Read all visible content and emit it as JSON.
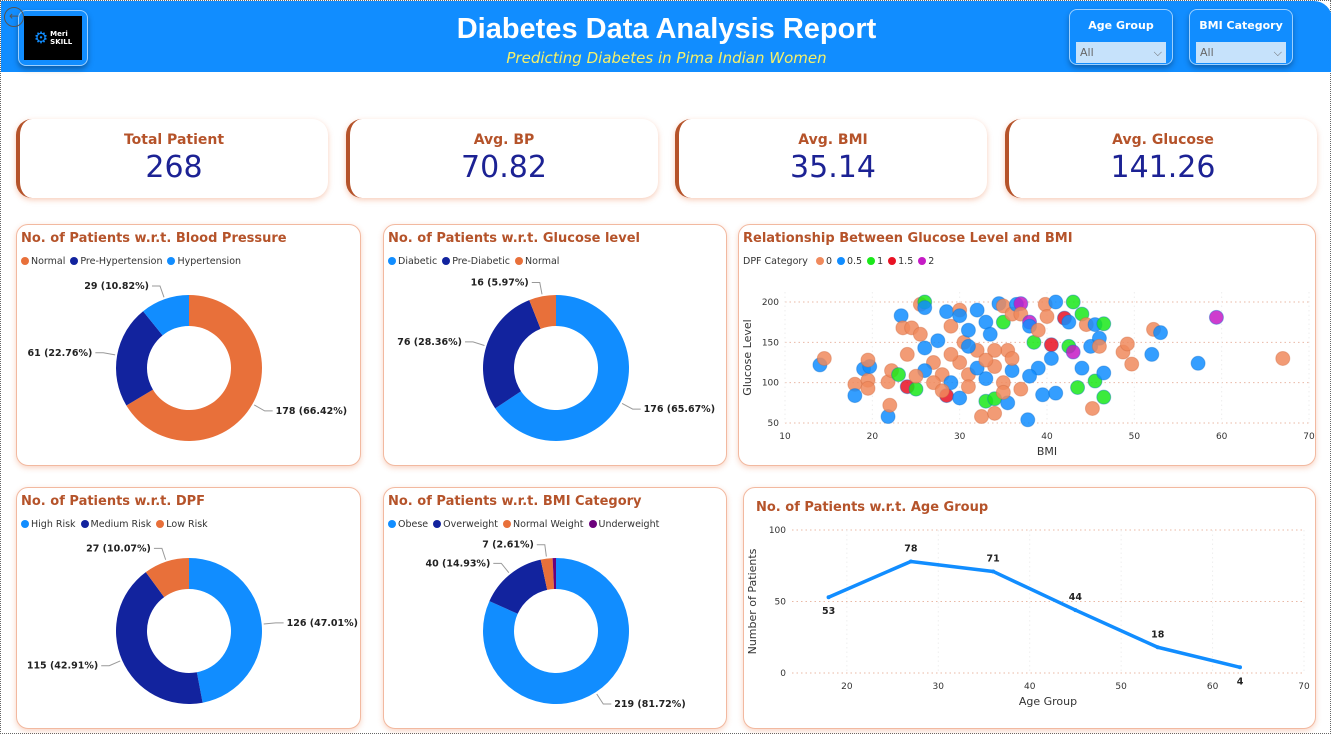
{
  "header": {
    "title": "Diabetes Data Analysis Report",
    "subtitle": "Predicting Diabetes in Pima Indian Women",
    "logo_text": "Meri SKILL",
    "back_icon": "back-arrow-icon"
  },
  "slicers": [
    {
      "label": "Age Group",
      "value": "All"
    },
    {
      "label": "BMI Category",
      "value": "All"
    }
  ],
  "kpis": [
    {
      "label": "Total Patient",
      "value": "268"
    },
    {
      "label": "Avg. BP",
      "value": "70.82"
    },
    {
      "label": "Avg. BMI",
      "value": "35.14"
    },
    {
      "label": "Avg. Glucose",
      "value": "141.26"
    }
  ],
  "colors": {
    "orange": "#E8703A",
    "navy": "#12239E",
    "blue": "#118DFF",
    "purple": "#6B007B",
    "green": "#1AE81A",
    "red": "#E81123",
    "magenta": "#C51BC5",
    "title": "#B5532A",
    "kpi_value": "#1C2294",
    "header": "#118DFF"
  },
  "chart_data": [
    {
      "id": "bp",
      "type": "pie",
      "donut": true,
      "title": "No. of Patients w.r.t. Blood Pressure",
      "categories": [
        "Normal",
        "Pre-Hypertension",
        "Hypertension"
      ],
      "values": [
        178,
        61,
        29
      ],
      "labels": [
        "178 (66.42%)",
        "61 (22.76%)",
        "29 (10.82%)"
      ],
      "colors": [
        "#E8703A",
        "#12239E",
        "#118DFF"
      ],
      "legend": "top-left"
    },
    {
      "id": "glucose",
      "type": "pie",
      "donut": true,
      "title": "No. of Patients w.r.t. Glucose level",
      "categories": [
        "Diabetic",
        "Pre-Diabetic",
        "Normal"
      ],
      "values": [
        176,
        76,
        16
      ],
      "labels": [
        "176 (65.67%)",
        "76 (28.36%)",
        "16 (5.97%)"
      ],
      "colors": [
        "#118DFF",
        "#12239E",
        "#E8703A"
      ],
      "legend": "top-left"
    },
    {
      "id": "dpf",
      "type": "pie",
      "donut": true,
      "title": "No. of Patients w.r.t. DPF",
      "categories": [
        "High Risk",
        "Medium Risk",
        "Low Risk"
      ],
      "values": [
        126,
        115,
        27
      ],
      "labels": [
        "126 (47.01%)",
        "115 (42.91%)",
        "27 (10.07%)"
      ],
      "colors": [
        "#118DFF",
        "#12239E",
        "#E8703A"
      ],
      "legend": "top-left"
    },
    {
      "id": "bmi",
      "type": "pie",
      "donut": true,
      "title": "No. of Patients w.r.t. BMI Category",
      "categories": [
        "Obese",
        "Overweight",
        "Normal Weight",
        "Underweight"
      ],
      "values": [
        219,
        40,
        7,
        2
      ],
      "labels": [
        "219 (81.72%)",
        "40 (14.93%)",
        "7 (2.61%)",
        ""
      ],
      "colors": [
        "#118DFF",
        "#12239E",
        "#E8703A",
        "#6B007B"
      ],
      "legend": "top-left"
    },
    {
      "id": "scatter",
      "type": "scatter",
      "title": "Relationship Between Glucose Level and BMI",
      "xlabel": "BMI",
      "ylabel": "Glucose Level",
      "xlim": [
        10,
        70
      ],
      "ylim": [
        50,
        200
      ],
      "xticks": [
        10,
        20,
        30,
        40,
        50,
        60,
        70
      ],
      "yticks": [
        50,
        100,
        150,
        200
      ],
      "legend_title": "DPF Category",
      "legend": "top-left",
      "grid": true,
      "categories": [
        "0",
        "0.5",
        "1",
        "1.5",
        "2"
      ],
      "colors": [
        "#F08A5D",
        "#118DFF",
        "#1AE81A",
        "#E81123",
        "#C51BC5"
      ],
      "points": [
        [
          14,
          122,
          0.5
        ],
        [
          14.5,
          130,
          0
        ],
        [
          18,
          98,
          0
        ],
        [
          18,
          84,
          0.5
        ],
        [
          19,
          117,
          0.5
        ],
        [
          19.5,
          103,
          0
        ],
        [
          19.5,
          93,
          0
        ],
        [
          19.7,
          120,
          0.5
        ],
        [
          19.5,
          128,
          0
        ],
        [
          21.8,
          101,
          0
        ],
        [
          21.8,
          58,
          0.5
        ],
        [
          22,
          72,
          0
        ],
        [
          22.2,
          115,
          0
        ],
        [
          23,
          110,
          1
        ],
        [
          23.3,
          183,
          0.5
        ],
        [
          23.5,
          168,
          0
        ],
        [
          24.5,
          168,
          0
        ],
        [
          24,
          135,
          0
        ],
        [
          24,
          95,
          1.5
        ],
        [
          25,
          92,
          1
        ],
        [
          25.5,
          197,
          0
        ],
        [
          26,
          200,
          1
        ],
        [
          26,
          193,
          0.5
        ],
        [
          25.5,
          160,
          0
        ],
        [
          26,
          143,
          0.5
        ],
        [
          27,
          125,
          0
        ],
        [
          27.5,
          152,
          0.5
        ],
        [
          28.5,
          188,
          0.5
        ],
        [
          28.5,
          84,
          1.5
        ],
        [
          29,
          170,
          0
        ],
        [
          30,
          190,
          0
        ],
        [
          30,
          183,
          0.5
        ],
        [
          30,
          81,
          0.5
        ],
        [
          30.5,
          150,
          0
        ],
        [
          31,
          165,
          0.5
        ],
        [
          31,
          110,
          0
        ],
        [
          32,
          190,
          0.5
        ],
        [
          32,
          140,
          0
        ],
        [
          32.5,
          58,
          0
        ],
        [
          33,
          175,
          0.5
        ],
        [
          33,
          77,
          1
        ],
        [
          33.5,
          160,
          0.5
        ],
        [
          34,
          62,
          0
        ],
        [
          34,
          80,
          1
        ],
        [
          34.5,
          198,
          0.5
        ],
        [
          35,
          195,
          0
        ],
        [
          35,
          175,
          1
        ],
        [
          35.5,
          140,
          0
        ],
        [
          35.5,
          75,
          0.5
        ],
        [
          36,
          185,
          0
        ],
        [
          36.5,
          197,
          0.5
        ],
        [
          37,
          198,
          2
        ],
        [
          37,
          185,
          0
        ],
        [
          37.8,
          54,
          0.5
        ],
        [
          38,
          175,
          2
        ],
        [
          38,
          170,
          0.5
        ],
        [
          38.5,
          150,
          1
        ],
        [
          39,
          165,
          0
        ],
        [
          39,
          118,
          0.5
        ],
        [
          39.5,
          85,
          0.5
        ],
        [
          39.8,
          197,
          0
        ],
        [
          40,
          182,
          0
        ],
        [
          40.5,
          147,
          1.5
        ],
        [
          40.5,
          130,
          0.5
        ],
        [
          41,
          200,
          0.5
        ],
        [
          41,
          87,
          0.5
        ],
        [
          42,
          180,
          1.5
        ],
        [
          42.5,
          175,
          0.5
        ],
        [
          42.5,
          145,
          1
        ],
        [
          43,
          200,
          1
        ],
        [
          43,
          138,
          2
        ],
        [
          43.5,
          94,
          1
        ],
        [
          44,
          185,
          1
        ],
        [
          44,
          118,
          0.5
        ],
        [
          44.5,
          172,
          0
        ],
        [
          45,
          145,
          0.5
        ],
        [
          45.5,
          172,
          0.5
        ],
        [
          45.5,
          102,
          1
        ],
        [
          45.2,
          68,
          0
        ],
        [
          46,
          155,
          0.5
        ],
        [
          46,
          145,
          0
        ],
        [
          46.5,
          173,
          1
        ],
        [
          46.5,
          82,
          1
        ],
        [
          46.5,
          112,
          0.5
        ],
        [
          48.7,
          138,
          0
        ],
        [
          49.2,
          148,
          0
        ],
        [
          49.7,
          123,
          0
        ],
        [
          52,
          135,
          0.5
        ],
        [
          52.2,
          166,
          0
        ],
        [
          53,
          162,
          0.5
        ],
        [
          57.3,
          124,
          0.5
        ],
        [
          59.4,
          181,
          2
        ],
        [
          67,
          130,
          0
        ],
        [
          28,
          110,
          0
        ],
        [
          29,
          100,
          0.5
        ],
        [
          31,
          95,
          0
        ],
        [
          33,
          105,
          0.5
        ],
        [
          34,
          120,
          0
        ],
        [
          35,
          100,
          0
        ],
        [
          36,
          115,
          0.5
        ],
        [
          27,
          100,
          0
        ],
        [
          30,
          125,
          0
        ],
        [
          32,
          118,
          0.5
        ],
        [
          34,
          140,
          0
        ],
        [
          36,
          130,
          0
        ],
        [
          37,
          92,
          0
        ],
        [
          38,
          108,
          0.5
        ],
        [
          29,
          135,
          0
        ],
        [
          31,
          145,
          0.5
        ],
        [
          33,
          128,
          0
        ],
        [
          28,
          90,
          0
        ],
        [
          35,
          88,
          0
        ],
        [
          26,
          115,
          0.5
        ],
        [
          25,
          108,
          0
        ]
      ]
    },
    {
      "id": "age",
      "type": "line",
      "title": "No. of Patients w.r.t. Age Group",
      "xlabel": "Age Group",
      "ylabel": "Number of Patients",
      "xlim": [
        12,
        70
      ],
      "ylim": [
        0,
        100
      ],
      "xticks": [
        20,
        30,
        40,
        50,
        60,
        70
      ],
      "yticks": [
        0,
        50,
        100
      ],
      "grid": true,
      "color": "#118DFF",
      "x": [
        18,
        27,
        36,
        45,
        54,
        63
      ],
      "values": [
        53,
        78,
        71,
        44,
        18,
        4
      ]
    }
  ]
}
